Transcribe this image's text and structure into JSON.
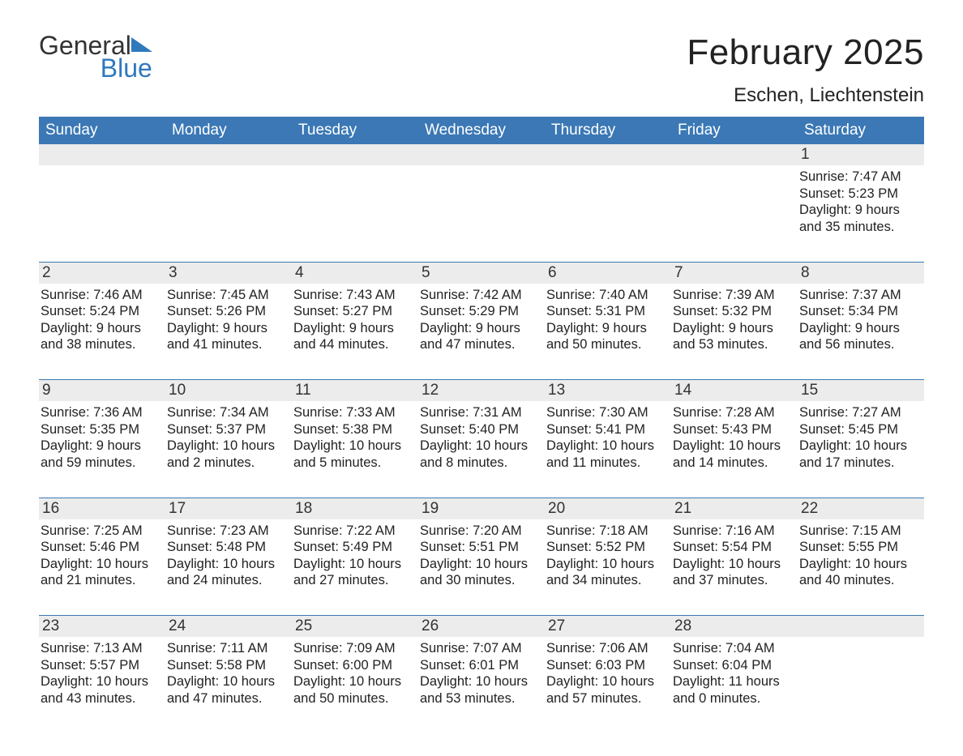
{
  "brand": {
    "general": "General",
    "blue": "Blue",
    "logo_color": "#2f79bd"
  },
  "title": "February 2025",
  "location": "Eschen, Liechtenstein",
  "colors": {
    "header_bg": "#3b78b5",
    "header_text": "#ffffff",
    "daynum_bg": "#ececec",
    "week_border": "#3b78b5",
    "body_text": "#222222",
    "page_bg": "#ffffff"
  },
  "days_of_week": [
    "Sunday",
    "Monday",
    "Tuesday",
    "Wednesday",
    "Thursday",
    "Friday",
    "Saturday"
  ],
  "weeks": [
    [
      {
        "blank": true
      },
      {
        "blank": true
      },
      {
        "blank": true
      },
      {
        "blank": true
      },
      {
        "blank": true
      },
      {
        "blank": true
      },
      {
        "num": "1",
        "sunrise": "Sunrise: 7:47 AM",
        "sunset": "Sunset: 5:23 PM",
        "daylight1": "Daylight: 9 hours",
        "daylight2": "and 35 minutes."
      }
    ],
    [
      {
        "num": "2",
        "sunrise": "Sunrise: 7:46 AM",
        "sunset": "Sunset: 5:24 PM",
        "daylight1": "Daylight: 9 hours",
        "daylight2": "and 38 minutes."
      },
      {
        "num": "3",
        "sunrise": "Sunrise: 7:45 AM",
        "sunset": "Sunset: 5:26 PM",
        "daylight1": "Daylight: 9 hours",
        "daylight2": "and 41 minutes."
      },
      {
        "num": "4",
        "sunrise": "Sunrise: 7:43 AM",
        "sunset": "Sunset: 5:27 PM",
        "daylight1": "Daylight: 9 hours",
        "daylight2": "and 44 minutes."
      },
      {
        "num": "5",
        "sunrise": "Sunrise: 7:42 AM",
        "sunset": "Sunset: 5:29 PM",
        "daylight1": "Daylight: 9 hours",
        "daylight2": "and 47 minutes."
      },
      {
        "num": "6",
        "sunrise": "Sunrise: 7:40 AM",
        "sunset": "Sunset: 5:31 PM",
        "daylight1": "Daylight: 9 hours",
        "daylight2": "and 50 minutes."
      },
      {
        "num": "7",
        "sunrise": "Sunrise: 7:39 AM",
        "sunset": "Sunset: 5:32 PM",
        "daylight1": "Daylight: 9 hours",
        "daylight2": "and 53 minutes."
      },
      {
        "num": "8",
        "sunrise": "Sunrise: 7:37 AM",
        "sunset": "Sunset: 5:34 PM",
        "daylight1": "Daylight: 9 hours",
        "daylight2": "and 56 minutes."
      }
    ],
    [
      {
        "num": "9",
        "sunrise": "Sunrise: 7:36 AM",
        "sunset": "Sunset: 5:35 PM",
        "daylight1": "Daylight: 9 hours",
        "daylight2": "and 59 minutes."
      },
      {
        "num": "10",
        "sunrise": "Sunrise: 7:34 AM",
        "sunset": "Sunset: 5:37 PM",
        "daylight1": "Daylight: 10 hours",
        "daylight2": "and 2 minutes."
      },
      {
        "num": "11",
        "sunrise": "Sunrise: 7:33 AM",
        "sunset": "Sunset: 5:38 PM",
        "daylight1": "Daylight: 10 hours",
        "daylight2": "and 5 minutes."
      },
      {
        "num": "12",
        "sunrise": "Sunrise: 7:31 AM",
        "sunset": "Sunset: 5:40 PM",
        "daylight1": "Daylight: 10 hours",
        "daylight2": "and 8 minutes."
      },
      {
        "num": "13",
        "sunrise": "Sunrise: 7:30 AM",
        "sunset": "Sunset: 5:41 PM",
        "daylight1": "Daylight: 10 hours",
        "daylight2": "and 11 minutes."
      },
      {
        "num": "14",
        "sunrise": "Sunrise: 7:28 AM",
        "sunset": "Sunset: 5:43 PM",
        "daylight1": "Daylight: 10 hours",
        "daylight2": "and 14 minutes."
      },
      {
        "num": "15",
        "sunrise": "Sunrise: 7:27 AM",
        "sunset": "Sunset: 5:45 PM",
        "daylight1": "Daylight: 10 hours",
        "daylight2": "and 17 minutes."
      }
    ],
    [
      {
        "num": "16",
        "sunrise": "Sunrise: 7:25 AM",
        "sunset": "Sunset: 5:46 PM",
        "daylight1": "Daylight: 10 hours",
        "daylight2": "and 21 minutes."
      },
      {
        "num": "17",
        "sunrise": "Sunrise: 7:23 AM",
        "sunset": "Sunset: 5:48 PM",
        "daylight1": "Daylight: 10 hours",
        "daylight2": "and 24 minutes."
      },
      {
        "num": "18",
        "sunrise": "Sunrise: 7:22 AM",
        "sunset": "Sunset: 5:49 PM",
        "daylight1": "Daylight: 10 hours",
        "daylight2": "and 27 minutes."
      },
      {
        "num": "19",
        "sunrise": "Sunrise: 7:20 AM",
        "sunset": "Sunset: 5:51 PM",
        "daylight1": "Daylight: 10 hours",
        "daylight2": "and 30 minutes."
      },
      {
        "num": "20",
        "sunrise": "Sunrise: 7:18 AM",
        "sunset": "Sunset: 5:52 PM",
        "daylight1": "Daylight: 10 hours",
        "daylight2": "and 34 minutes."
      },
      {
        "num": "21",
        "sunrise": "Sunrise: 7:16 AM",
        "sunset": "Sunset: 5:54 PM",
        "daylight1": "Daylight: 10 hours",
        "daylight2": "and 37 minutes."
      },
      {
        "num": "22",
        "sunrise": "Sunrise: 7:15 AM",
        "sunset": "Sunset: 5:55 PM",
        "daylight1": "Daylight: 10 hours",
        "daylight2": "and 40 minutes."
      }
    ],
    [
      {
        "num": "23",
        "sunrise": "Sunrise: 7:13 AM",
        "sunset": "Sunset: 5:57 PM",
        "daylight1": "Daylight: 10 hours",
        "daylight2": "and 43 minutes."
      },
      {
        "num": "24",
        "sunrise": "Sunrise: 7:11 AM",
        "sunset": "Sunset: 5:58 PM",
        "daylight1": "Daylight: 10 hours",
        "daylight2": "and 47 minutes."
      },
      {
        "num": "25",
        "sunrise": "Sunrise: 7:09 AM",
        "sunset": "Sunset: 6:00 PM",
        "daylight1": "Daylight: 10 hours",
        "daylight2": "and 50 minutes."
      },
      {
        "num": "26",
        "sunrise": "Sunrise: 7:07 AM",
        "sunset": "Sunset: 6:01 PM",
        "daylight1": "Daylight: 10 hours",
        "daylight2": "and 53 minutes."
      },
      {
        "num": "27",
        "sunrise": "Sunrise: 7:06 AM",
        "sunset": "Sunset: 6:03 PM",
        "daylight1": "Daylight: 10 hours",
        "daylight2": "and 57 minutes."
      },
      {
        "num": "28",
        "sunrise": "Sunrise: 7:04 AM",
        "sunset": "Sunset: 6:04 PM",
        "daylight1": "Daylight: 11 hours",
        "daylight2": "and 0 minutes."
      },
      {
        "blank": true
      }
    ]
  ]
}
